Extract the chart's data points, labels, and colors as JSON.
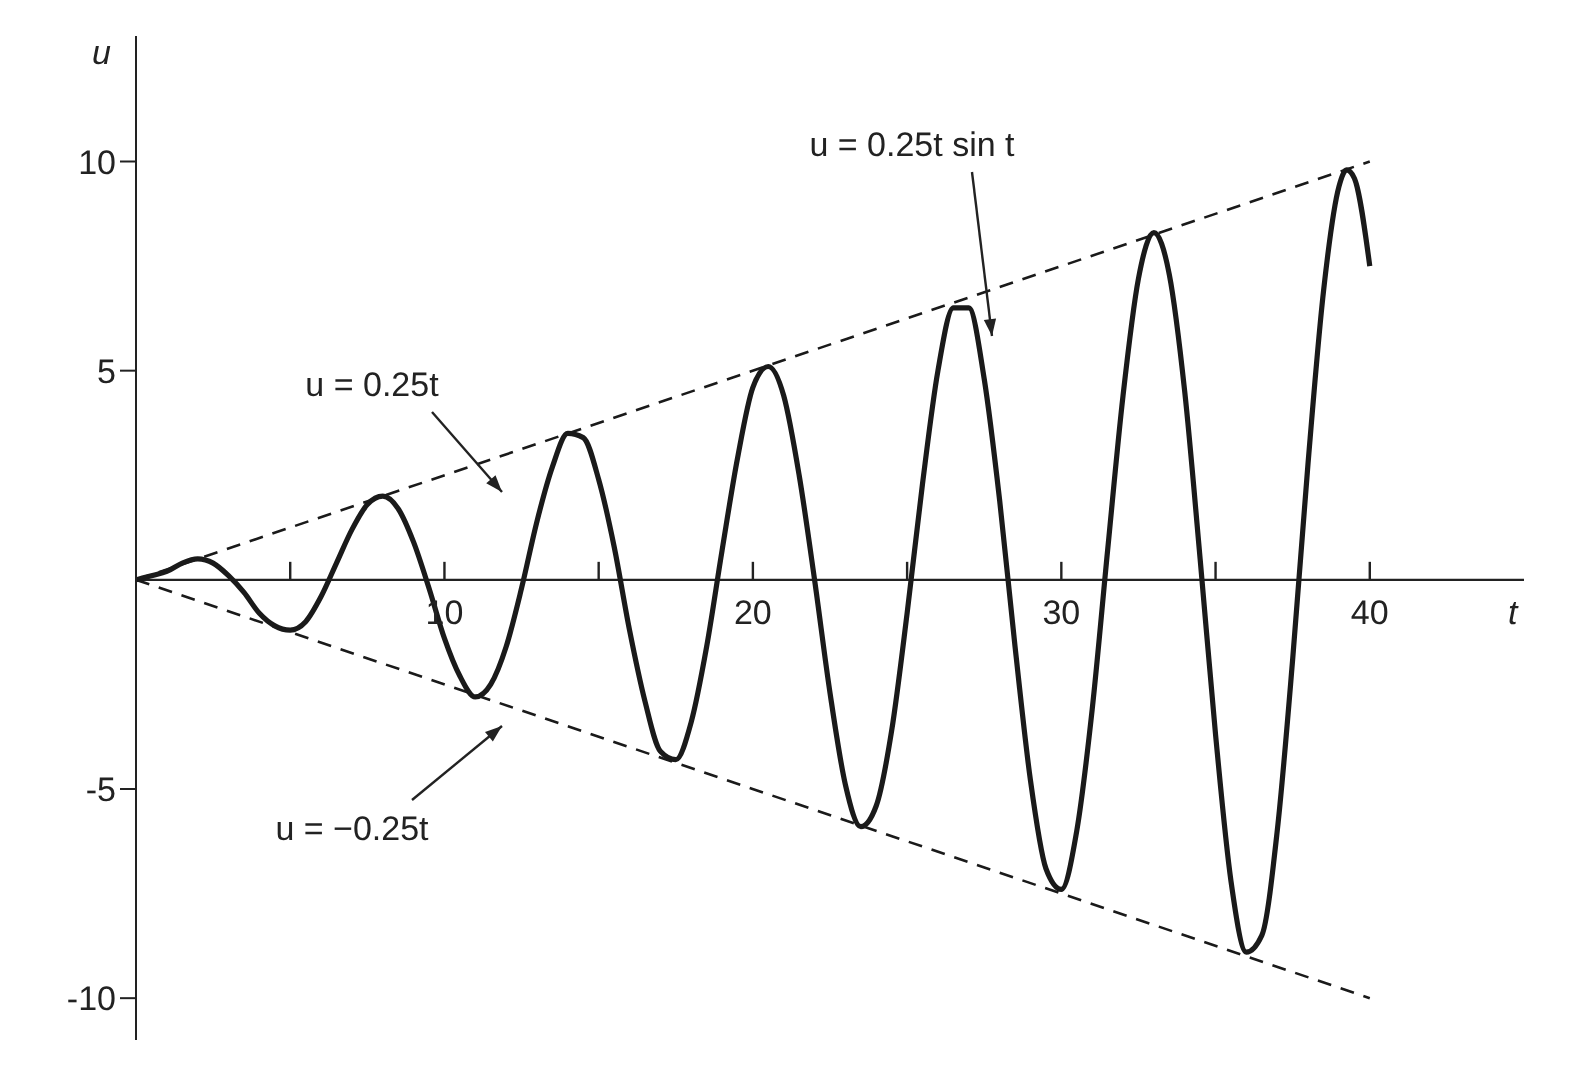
{
  "chart_data": {
    "type": "line",
    "xlabel": "t",
    "ylabel": "u",
    "xlim": [
      0,
      45
    ],
    "ylim": [
      -11,
      13
    ],
    "xticks": [
      {
        "value": 5,
        "label": null
      },
      10,
      {
        "value": 15,
        "label": null
      },
      20,
      {
        "value": 25,
        "label": null
      },
      30,
      {
        "value": 35,
        "label": null
      },
      40
    ],
    "yticks": [
      -10,
      -5,
      5,
      10
    ],
    "marker": "none",
    "series": [
      {
        "color": "#1a1a1a",
        "line_style": "solid",
        "x": [
          0,
          0.5,
          1,
          1.5,
          2,
          2.5,
          3,
          3.5,
          4,
          4.5,
          5,
          5.5,
          6,
          6.5,
          7,
          7.5,
          8,
          8.5,
          9,
          9.5,
          10,
          10.5,
          11,
          11.5,
          12,
          12.5,
          13,
          13.5,
          14,
          14.5,
          15,
          15.5,
          16,
          16.5,
          17,
          17.5,
          18,
          18.5,
          19,
          19.5,
          20,
          20.5,
          21,
          21.5,
          22,
          22.5,
          23,
          23.5,
          24,
          24.5,
          25,
          25.5,
          26,
          26.5,
          27,
          27.5,
          28,
          28.5,
          29,
          29.5,
          30,
          30.5,
          31,
          31.5,
          32,
          32.5,
          33,
          33.5,
          34,
          34.5,
          35,
          35.5,
          36,
          36.5,
          37,
          37.5,
          38,
          38.5,
          39,
          39.25,
          39.5,
          40
        ],
        "values": [
          0,
          0.1,
          0.2,
          0.4,
          0.5,
          0.4,
          0.1,
          -0.3,
          -0.8,
          -1.1,
          -1.2,
          -1.0,
          -0.4,
          0.4,
          1.2,
          1.8,
          2.0,
          1.7,
          0.9,
          -0.2,
          -1.4,
          -2.3,
          -2.8,
          -2.5,
          -1.6,
          -0.2,
          1.4,
          2.7,
          3.5,
          3.4,
          2.4,
          0.8,
          -1.2,
          -2.9,
          -4.1,
          -4.3,
          -3.4,
          -1.6,
          0.7,
          2.9,
          4.6,
          5.1,
          4.4,
          2.5,
          0,
          -2.7,
          -4.9,
          -5.9,
          -5.4,
          -3.6,
          -0.8,
          2.3,
          5.0,
          6.5,
          6.5,
          4.8,
          1.9,
          -1.6,
          -4.8,
          -6.9,
          -7.4,
          -6.0,
          -3.1,
          0.7,
          4.4,
          7.2,
          8.3,
          7.3,
          4.5,
          0.5,
          -3.7,
          -7.2,
          -8.9,
          -8.5,
          -6.0,
          -1.9,
          2.8,
          6.9,
          9.4,
          9.8,
          9.6,
          7.5
        ]
      },
      {
        "color": "#1a1a1a",
        "line_style": "dashed",
        "x": [
          0,
          40
        ],
        "values": [
          0,
          10
        ]
      },
      {
        "color": "#1a1a1a",
        "line_style": "dashed",
        "x": [
          0,
          40
        ],
        "values": [
          0,
          -10
        ]
      }
    ],
    "annotations": [
      "u = 0.25t sin t",
      "u = 0.25t",
      "u = −0.25t"
    ]
  }
}
